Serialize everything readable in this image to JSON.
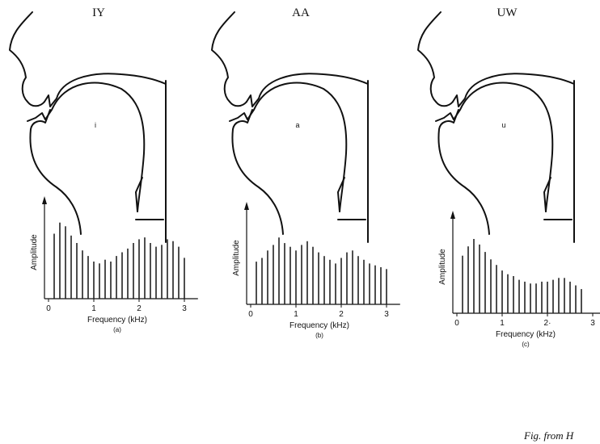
{
  "caption": "Fig. from H",
  "chart_data": [
    {
      "type": "bar",
      "title": "IY",
      "vowel": "i",
      "xlabel": "Frequency (kHz)",
      "ylabel": "Amplitude",
      "panel": "(a)",
      "x": [
        0.125,
        0.25,
        0.375,
        0.5,
        0.625,
        0.75,
        0.875,
        1.0,
        1.125,
        1.25,
        1.375,
        1.5,
        1.625,
        1.75,
        1.875,
        2.0,
        2.125,
        2.25,
        2.375,
        2.5,
        2.625,
        2.75,
        2.875,
        3.0
      ],
      "values": [
        70,
        82,
        78,
        68,
        60,
        52,
        46,
        40,
        38,
        42,
        40,
        46,
        50,
        54,
        60,
        64,
        66,
        60,
        56,
        58,
        64,
        62,
        56,
        44
      ],
      "xlim": [
        0,
        3.3
      ],
      "xticks": [
        0,
        1,
        2,
        3
      ],
      "ylim": [
        0,
        100
      ]
    },
    {
      "type": "bar",
      "title": "AA",
      "vowel": "a",
      "xlabel": "Frequency (kHz)",
      "ylabel": "Amplitude",
      "panel": "(b)",
      "x": [
        0.125,
        0.25,
        0.375,
        0.5,
        0.625,
        0.75,
        0.875,
        1.0,
        1.125,
        1.25,
        1.375,
        1.5,
        1.625,
        1.75,
        1.875,
        2.0,
        2.125,
        2.25,
        2.375,
        2.5,
        2.625,
        2.75,
        2.875,
        3.0
      ],
      "values": [
        46,
        50,
        58,
        64,
        72,
        66,
        62,
        58,
        64,
        68,
        62,
        56,
        52,
        48,
        44,
        50,
        56,
        58,
        52,
        48,
        44,
        42,
        40,
        38
      ],
      "xlim": [
        0,
        3.3
      ],
      "xticks": [
        0,
        1,
        2,
        3
      ],
      "ylim": [
        0,
        100
      ]
    },
    {
      "type": "bar",
      "title": "UW",
      "vowel": "u",
      "xlabel": "Frequency (kHz)",
      "ylabel": "Amplitude",
      "panel": "(c)",
      "x": [
        0.125,
        0.25,
        0.375,
        0.5,
        0.625,
        0.75,
        0.875,
        1.0,
        1.125,
        1.25,
        1.375,
        1.5,
        1.625,
        1.75,
        1.875,
        2.0,
        2.125,
        2.25,
        2.375,
        2.5,
        2.625,
        2.75
      ],
      "values": [
        62,
        72,
        80,
        74,
        66,
        58,
        52,
        46,
        42,
        40,
        36,
        34,
        32,
        32,
        34,
        34,
        36,
        38,
        38,
        34,
        30,
        26
      ],
      "xlim": [
        0,
        3.3
      ],
      "xticks": [
        0,
        1,
        {
          "value": 2,
          "label": "2·"
        },
        3
      ],
      "ylim": [
        0,
        100
      ]
    }
  ]
}
